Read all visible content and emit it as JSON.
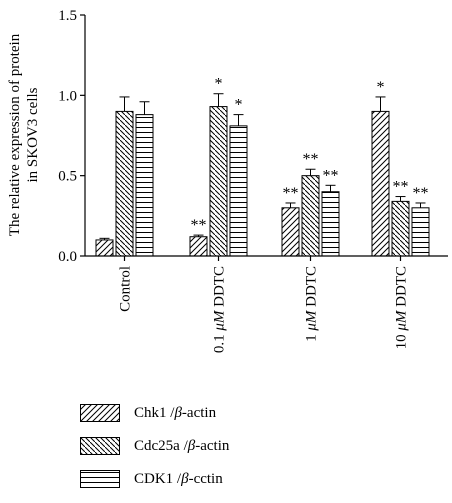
{
  "chart_data": {
    "type": "bar",
    "ylabel": "The relative expression of protein in SKOV3 cells",
    "ylabel_lines": [
      "The relative expression of protein",
      "in SKOV3 cells"
    ],
    "ylim": [
      0,
      1.5
    ],
    "yticks": [
      "0.0",
      "0.5",
      "1.0",
      "1.5"
    ],
    "categories": [
      "Control",
      "0.1 μM DDTC",
      "1 μM DDTC",
      "10 μM DDTC"
    ],
    "category_parts": [
      {
        "pre": "Control",
        "unit": "",
        "post": ""
      },
      {
        "pre": "0.1 ",
        "unit": "μM",
        "post": " DDTC"
      },
      {
        "pre": "1 ",
        "unit": "μM",
        "post": " DDTC"
      },
      {
        "pre": "10 ",
        "unit": "μM",
        "post": " DDTC"
      }
    ],
    "series": [
      {
        "name": "Chk1 /β-actin",
        "legend": {
          "pre": "Chk1 /",
          "greek": "β",
          "post": "-actin"
        },
        "pattern": "diag-up",
        "values": [
          0.1,
          0.12,
          0.3,
          0.9
        ],
        "errors": [
          0.01,
          0.01,
          0.03,
          0.09
        ],
        "annotations": [
          "",
          "**",
          "**",
          "*"
        ]
      },
      {
        "name": "Cdc25a /β-actin",
        "legend": {
          "pre": "Cdc25a /",
          "greek": "β",
          "post": "-actin"
        },
        "pattern": "diag-down",
        "values": [
          0.9,
          0.93,
          0.5,
          0.34
        ],
        "errors": [
          0.09,
          0.08,
          0.04,
          0.03
        ],
        "annotations": [
          "",
          "*",
          "**",
          "**"
        ]
      },
      {
        "name": "CDK1 /β-cctin",
        "legend": {
          "pre": "CDK1 /",
          "greek": "β",
          "post": "-cctin"
        },
        "pattern": "horizontal",
        "values": [
          0.88,
          0.81,
          0.4,
          0.3
        ],
        "errors": [
          0.08,
          0.07,
          0.04,
          0.03
        ],
        "annotations": [
          "",
          "*",
          "**",
          "**"
        ]
      }
    ],
    "grid": false,
    "legend_position": "bottom"
  }
}
